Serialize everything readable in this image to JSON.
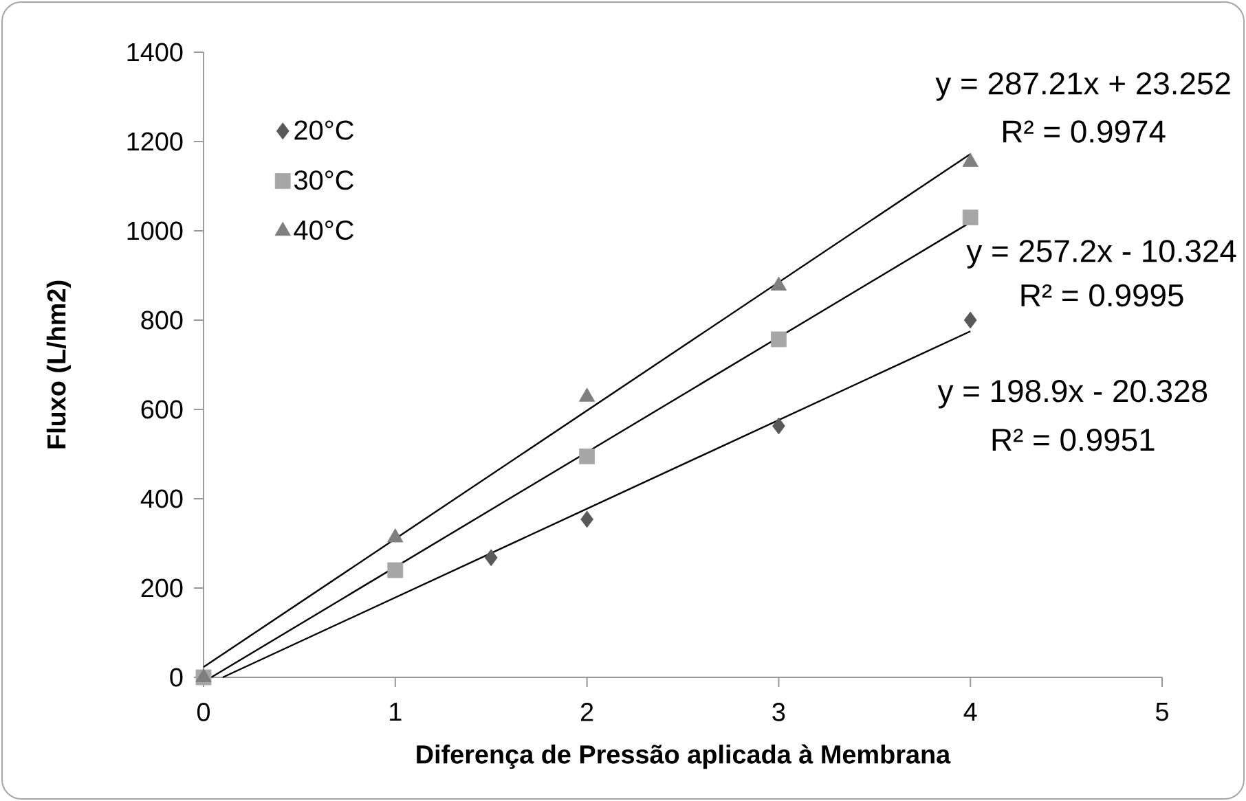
{
  "chart_data": {
    "type": "scatter",
    "xlabel": "Diferença de Pressão aplicada à Membrana",
    "ylabel": "Fluxo (L/hm2)",
    "xlim": [
      0,
      5
    ],
    "xticks": [
      0,
      1,
      2,
      3,
      4,
      5
    ],
    "ylim": [
      0,
      1400
    ],
    "yticks": [
      0,
      200,
      400,
      600,
      800,
      1000,
      1200,
      1400
    ],
    "grid": false,
    "legend": "top left",
    "series": [
      {
        "name": "20°C",
        "color": "#595959",
        "marker": "diamond",
        "x": [
          1.5,
          2,
          3,
          4
        ],
        "values": [
          268,
          354,
          563,
          800
        ]
      },
      {
        "name": "30°C",
        "color": "#a6a6a6",
        "marker": "square",
        "x": [
          0,
          1,
          2,
          3,
          4
        ],
        "values": [
          0,
          240,
          495,
          757,
          1030
        ]
      },
      {
        "name": "40°C",
        "color": "#7f7f7f",
        "marker": "triangle",
        "x": [
          0,
          1,
          2,
          3,
          4
        ],
        "values": [
          0,
          313,
          628,
          877,
          1154
        ]
      },
      {
        "type": "line",
        "color": "#000000",
        "marker": "none",
        "x": [
          0.1,
          4
        ],
        "values": [
          0,
          775
        ]
      },
      {
        "type": "line",
        "color": "#000000",
        "marker": "none",
        "x": [
          0.04,
          4
        ],
        "values": [
          0,
          1019
        ]
      },
      {
        "type": "line",
        "color": "#000000",
        "marker": "none",
        "x": [
          0,
          4
        ],
        "values": [
          23,
          1172
        ]
      }
    ],
    "annotations": [
      "y = 287.21x + 23.252",
      "R² = 0.9974",
      "y = 257.2x - 10.324",
      "R² = 0.9995",
      "y = 198.9x - 20.328",
      "R² = 0.9951"
    ]
  }
}
